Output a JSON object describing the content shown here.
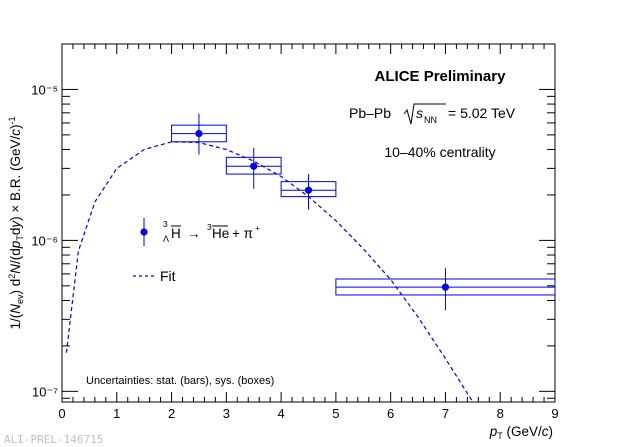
{
  "chart_data": {
    "type": "scatter",
    "title": "ALICE Preliminary",
    "subtitle": "Pb–Pb √sNN = 5.02 TeV",
    "centrality": "10–40% centrality",
    "xlabel": "p_T (GeV/c)",
    "ylabel": "1/(N_ev) d²N/(dp_T dy) × B.R. (GeV/c)⁻¹",
    "xlim": [
      0,
      9
    ],
    "ylim": [
      8.5e-08,
      2e-05
    ],
    "yscale": "log",
    "x_ticks": [
      0,
      1,
      2,
      3,
      4,
      5,
      6,
      7,
      8,
      9
    ],
    "y_tick_labels": [
      "10⁻⁷",
      "10⁻⁶",
      "10⁻⁵"
    ],
    "grid": false,
    "legend_position": "middle-left",
    "series": [
      {
        "name": "³ΛH̄ → ³He̅ + π⁺",
        "color": "#0000ee",
        "points": [
          {
            "x": 2.5,
            "y": 5.1e-06,
            "stat_err_low": 1.4e-06,
            "stat_err_high": 1.8e-06,
            "xbin": [
              2.0,
              3.0
            ],
            "sys_low": 4.5e-06,
            "sys_high": 5.8e-06
          },
          {
            "x": 3.5,
            "y": 3.1e-06,
            "stat_err_low": 9e-07,
            "stat_err_high": 1e-06,
            "xbin": [
              3.0,
              4.0
            ],
            "sys_low": 2.75e-06,
            "sys_high": 3.55e-06
          },
          {
            "x": 4.5,
            "y": 2.15e-06,
            "stat_err_low": 5.5e-07,
            "stat_err_high": 6e-07,
            "xbin": [
              4.0,
              5.0
            ],
            "sys_low": 1.95e-06,
            "sys_high": 2.45e-06
          },
          {
            "x": 7.0,
            "y": 4.9e-07,
            "stat_err_low": 1.45e-07,
            "stat_err_high": 1.65e-07,
            "xbin": [
              5.0,
              9.0
            ],
            "sys_low": 4.35e-07,
            "sys_high": 5.55e-07
          }
        ]
      },
      {
        "name": "Fit",
        "color": "#0000ee",
        "style": "dashed",
        "points": [
          {
            "x": 0.08,
            "y": 1.8e-07
          },
          {
            "x": 0.3,
            "y": 8.5e-07
          },
          {
            "x": 0.6,
            "y": 1.8e-06
          },
          {
            "x": 1.0,
            "y": 3e-06
          },
          {
            "x": 1.5,
            "y": 4e-06
          },
          {
            "x": 2.0,
            "y": 4.5e-06
          },
          {
            "x": 2.5,
            "y": 4.45e-06
          },
          {
            "x": 3.0,
            "y": 4e-06
          },
          {
            "x": 3.5,
            "y": 3.35e-06
          },
          {
            "x": 4.0,
            "y": 2.65e-06
          },
          {
            "x": 4.5,
            "y": 1.95e-06
          },
          {
            "x": 5.0,
            "y": 1.35e-06
          },
          {
            "x": 5.5,
            "y": 8.8e-07
          },
          {
            "x": 6.0,
            "y": 5.5e-07
          },
          {
            "x": 6.5,
            "y": 3.1e-07
          },
          {
            "x": 7.0,
            "y": 1.65e-07
          },
          {
            "x": 7.5,
            "y": 8.5e-08
          }
        ]
      }
    ],
    "annotations": [
      "Uncertainties: stat. (bars), sys. (boxes)"
    ]
  },
  "footer_tag": "ALI-PREL-146715"
}
